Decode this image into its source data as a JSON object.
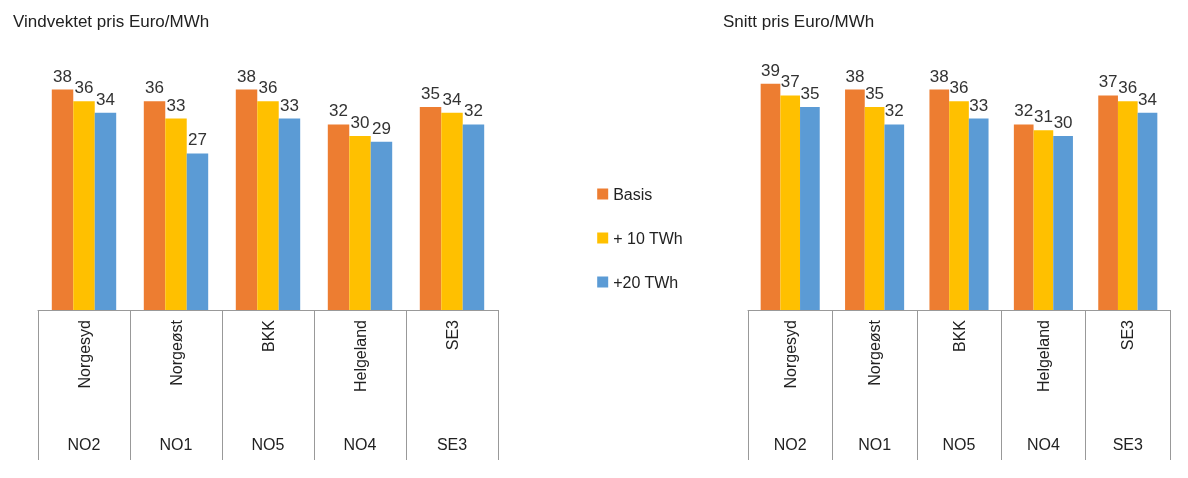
{
  "chart_data": [
    {
      "type": "bar",
      "title": "Vindvektet pris Euro/MWh",
      "categories": [
        "Norgesyd",
        "Norgeøst",
        "BKK",
        "Helgeland",
        "SE3"
      ],
      "series": [
        {
          "name": "Basis",
          "color": "#ed7d31",
          "values": [
            38,
            36,
            38,
            32,
            35
          ]
        },
        {
          "name": "+ 10 TWh",
          "color": "#ffc000",
          "values": [
            36,
            33,
            36,
            30,
            34
          ]
        },
        {
          "name": "+20 TWh",
          "color": "#5b9bd5",
          "values": [
            34,
            27,
            33,
            29,
            32
          ]
        }
      ],
      "annotations": [
        "NO2",
        "NO1",
        "NO5",
        "NO4",
        "SE3"
      ],
      "tick_labels": "x",
      "data_labels": true,
      "grid": false,
      "legend": "right"
    },
    {
      "type": "bar",
      "title": "Snitt pris Euro/MWh",
      "categories": [
        "Norgesyd",
        "Norgeøst",
        "BKK",
        "Helgeland",
        "SE3"
      ],
      "series": [
        {
          "color": "#ed7d31",
          "values": [
            39,
            38,
            38,
            32,
            37
          ]
        },
        {
          "color": "#ffc000",
          "values": [
            37,
            35,
            36,
            31,
            36
          ]
        },
        {
          "color": "#5b9bd5",
          "values": [
            35,
            32,
            33,
            30,
            34
          ]
        }
      ],
      "annotations": [
        "NO2",
        "NO1",
        "NO5",
        "NO4",
        "SE3"
      ],
      "tick_labels": "x",
      "data_labels": true,
      "grid": false,
      "legend": false
    }
  ]
}
